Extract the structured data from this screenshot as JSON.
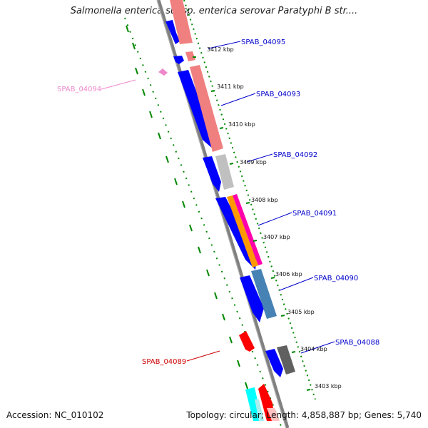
{
  "title": "Salmonella enterica subsp. enterica serovar Paratyphi B str....",
  "footer": {
    "accession": "Accession: NC_010102",
    "summary": "Topology: circular; Length: 4,858,887 bp; Genes: 5,740"
  },
  "ticks": [
    {
      "label": "3412 kbp"
    },
    {
      "label": "3411 kbp"
    },
    {
      "label": "3410 kbp"
    },
    {
      "label": "3409 kbp"
    },
    {
      "label": "3408 kbp"
    },
    {
      "label": "3407 kbp"
    },
    {
      "label": "3406 kbp"
    },
    {
      "label": "3405 kbp"
    },
    {
      "label": "3404 kbp"
    },
    {
      "label": "3403 kbp"
    }
  ],
  "genes": [
    {
      "name": "SPAB_04095",
      "color": "#0000cc"
    },
    {
      "name": "SPAB_04094",
      "color": "#ee88cc"
    },
    {
      "name": "SPAB_04093",
      "color": "#0000cc"
    },
    {
      "name": "SPAB_04092",
      "color": "#0000cc"
    },
    {
      "name": "SPAB_04091",
      "color": "#0000cc"
    },
    {
      "name": "SPAB_04090",
      "color": "#0000cc"
    },
    {
      "name": "SPAB_04088",
      "color": "#0000cc"
    },
    {
      "name": "SPAB_04089",
      "color": "#cc0000"
    }
  ],
  "colors": {
    "backbone": "#808080",
    "cds_forward": "#0000ff",
    "cog_salmon": "#f08080",
    "cog_grey": "#c0c0c0",
    "cog_orange": "#ff9900",
    "cog_magenta": "#ff00aa",
    "cog_steelblue": "#4682b4",
    "cog_darkgrey": "#606060",
    "cds_red": "#ff0000",
    "cds_cyan": "#00ffff",
    "pink_cds": "#ee88cc",
    "tick_green": "#008800"
  }
}
